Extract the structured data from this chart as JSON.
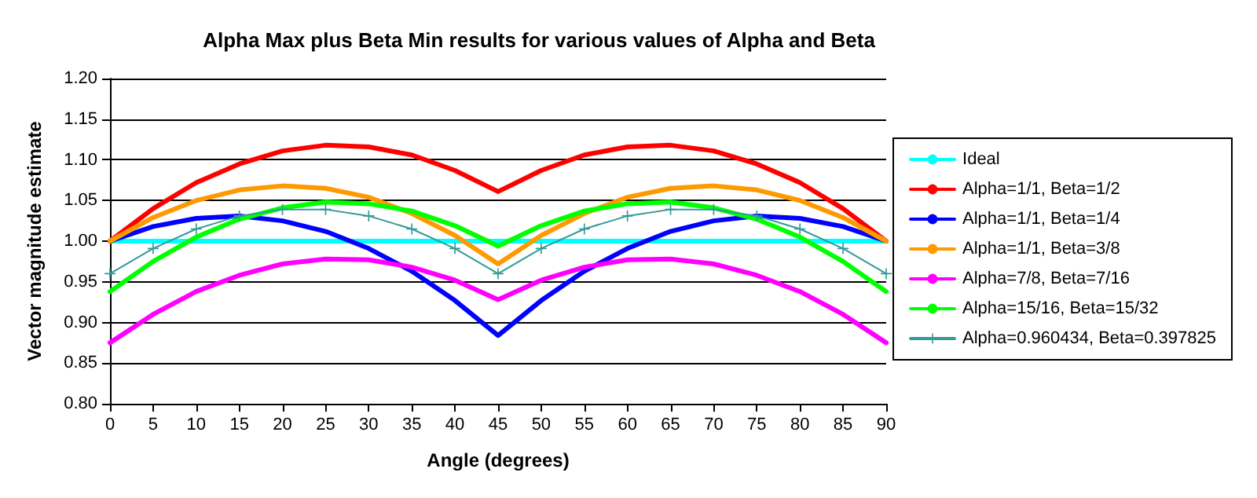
{
  "chart_data": {
    "type": "line",
    "title": "Alpha Max plus Beta Min results for various values of Alpha and Beta",
    "xlabel": "Angle (degrees)",
    "ylabel": "Vector magnitude estimate",
    "x": [
      0,
      5,
      10,
      15,
      20,
      25,
      30,
      35,
      40,
      45,
      50,
      55,
      60,
      65,
      70,
      75,
      80,
      85,
      90
    ],
    "series": [
      {
        "name": "Ideal",
        "color": "#00ffff",
        "values": [
          1,
          1,
          1,
          1,
          1,
          1,
          1,
          1,
          1,
          1,
          1,
          1,
          1,
          1,
          1,
          1,
          1,
          1,
          1
        ]
      },
      {
        "name": "Alpha=1/1, Beta=1/2",
        "color": "#ff0000",
        "values": [
          1.0,
          1.04,
          1.072,
          1.095,
          1.111,
          1.118,
          1.116,
          1.106,
          1.087,
          1.061,
          1.087,
          1.106,
          1.116,
          1.118,
          1.111,
          1.095,
          1.072,
          1.04,
          1.0
        ]
      },
      {
        "name": "Alpha=1/1, Beta=1/4",
        "color": "#0000ff",
        "values": [
          1.0,
          1.018,
          1.028,
          1.031,
          1.025,
          1.012,
          0.991,
          0.963,
          0.927,
          0.884,
          0.927,
          0.963,
          0.991,
          1.012,
          1.025,
          1.031,
          1.028,
          1.018,
          1.0
        ]
      },
      {
        "name": "Alpha=1/1, Beta=3/8",
        "color": "#ff9900",
        "values": [
          1.0,
          1.029,
          1.05,
          1.063,
          1.068,
          1.065,
          1.054,
          1.034,
          1.007,
          0.972,
          1.007,
          1.034,
          1.054,
          1.065,
          1.068,
          1.063,
          1.05,
          1.029,
          1.0
        ]
      },
      {
        "name": "Alpha=7/8, Beta=7/16",
        "color": "#ff00ff",
        "values": [
          0.875,
          0.91,
          0.938,
          0.958,
          0.972,
          0.978,
          0.977,
          0.968,
          0.952,
          0.928,
          0.952,
          0.968,
          0.977,
          0.978,
          0.972,
          0.958,
          0.938,
          0.91,
          0.875
        ]
      },
      {
        "name": "Alpha=15/16, Beta=15/32",
        "color": "#00ff00",
        "values": [
          0.938,
          0.975,
          1.005,
          1.027,
          1.041,
          1.048,
          1.046,
          1.037,
          1.019,
          0.994,
          1.019,
          1.037,
          1.046,
          1.048,
          1.041,
          1.027,
          1.005,
          0.975,
          0.938
        ]
      },
      {
        "name": "Alpha=0.960434, Beta=0.397825",
        "color": "#339999",
        "marker": "cross",
        "values": [
          0.96,
          0.991,
          1.015,
          1.031,
          1.039,
          1.039,
          1.031,
          1.015,
          0.991,
          0.96,
          0.991,
          1.015,
          1.031,
          1.039,
          1.039,
          1.031,
          1.015,
          0.991,
          0.96
        ]
      }
    ],
    "xlim": [
      0,
      90
    ],
    "xticks": [
      0,
      5,
      10,
      15,
      20,
      25,
      30,
      35,
      40,
      45,
      50,
      55,
      60,
      65,
      70,
      75,
      80,
      85,
      90
    ],
    "ylim": [
      0.8,
      1.2
    ],
    "yticks": [
      {
        "value": 0.8,
        "label": "0.80"
      },
      {
        "value": 0.85,
        "label": "0.85"
      },
      {
        "value": 0.9,
        "label": "0.90"
      },
      {
        "value": 0.95,
        "label": "0.95"
      },
      {
        "value": 1,
        "label": "1.00"
      },
      {
        "value": 1.05,
        "label": "1.05"
      },
      {
        "value": 1.1,
        "label": "1.10"
      },
      {
        "value": 1.15,
        "label": "1.15"
      },
      {
        "value": 1.2,
        "label": "1.20"
      }
    ],
    "grid": "y",
    "legend": "right",
    "marker": "none",
    "line_style": "solid"
  }
}
